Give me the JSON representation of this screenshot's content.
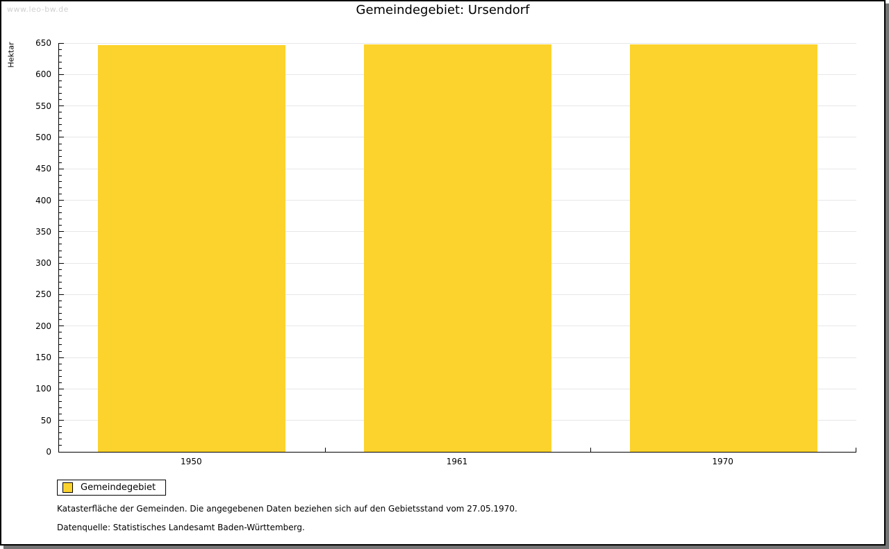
{
  "watermark": "www.leo-bw.de",
  "title": "Gemeindegebiet: Ursendorf",
  "chart_data": {
    "type": "bar",
    "categories": [
      "1950",
      "1961",
      "1970"
    ],
    "series": [
      {
        "name": "Gemeindegebiet",
        "values": [
          647,
          648,
          648
        ]
      }
    ],
    "xlabel": "",
    "ylabel": "Hektar",
    "ylim": [
      0,
      650
    ],
    "ytick_step": 50,
    "minor_tick_step": 10,
    "grid": true,
    "bar_color": "#FCD32D",
    "legend_position": "bottom-left"
  },
  "colors": {
    "grid": "#E7E7E7",
    "axis": "#000000",
    "watermark": "#D0D0D0",
    "frame_shadow": "#747474"
  },
  "footnotes": [
    "Katasterfläche der Gemeinden. Die angegebenen Daten beziehen sich auf den Gebietsstand vom 27.05.1970.",
    "Datenquelle: Statistisches Landesamt Baden-Württemberg."
  ]
}
